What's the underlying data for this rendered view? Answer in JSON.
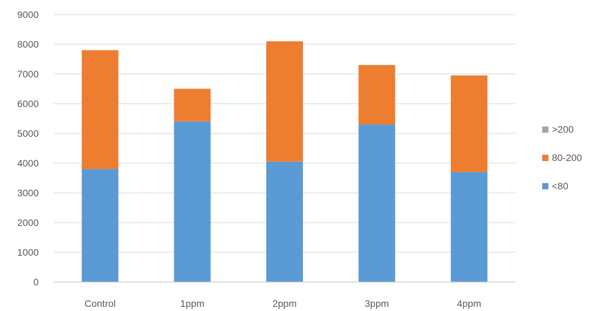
{
  "chart_data": {
    "type": "bar",
    "stacked": true,
    "categories": [
      "Control",
      "1ppm",
      "2ppm",
      "3ppm",
      "4ppm"
    ],
    "series": [
      {
        "name": "<80",
        "color": "#5b9bd5",
        "values": [
          3800,
          5400,
          4050,
          5300,
          3700
        ]
      },
      {
        "name": "80-200",
        "color": "#ed7d31",
        "values": [
          4000,
          1100,
          4050,
          2000,
          3250
        ]
      },
      {
        "name": ">200",
        "color": "#a5a5a5",
        "values": [
          0,
          0,
          0,
          0,
          0
        ]
      }
    ],
    "title": "",
    "xlabel": "",
    "ylabel": "",
    "ylim": [
      0,
      9000
    ],
    "yticks": [
      0,
      1000,
      2000,
      3000,
      4000,
      5000,
      6000,
      7000,
      8000,
      9000
    ],
    "grid": true,
    "legend": {
      "position": "right",
      "order": [
        ">200",
        "80-200",
        "<80"
      ]
    }
  }
}
